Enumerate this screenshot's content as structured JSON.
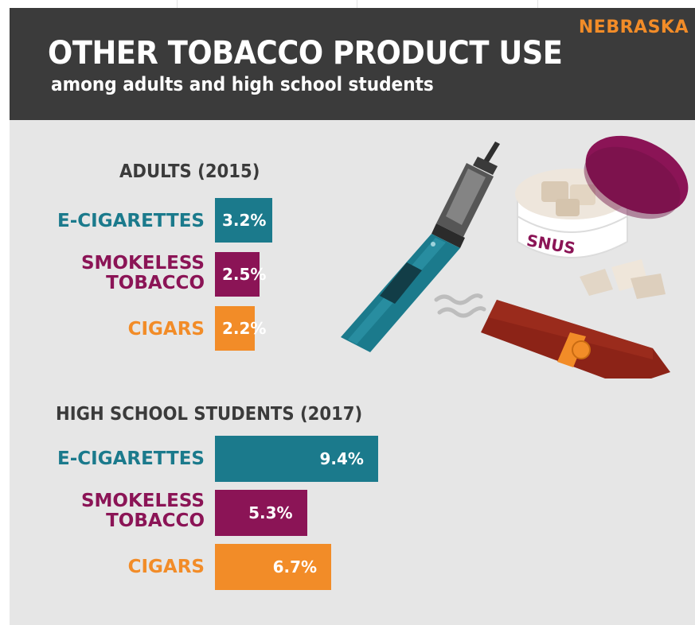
{
  "brand": "NEBRASKA",
  "title": "OTHER TOBACCO PRODUCT USE",
  "subtitle": "among adults and high school students",
  "illustration": {
    "snus_label": "SNUS"
  },
  "colors": {
    "e_cigarettes": "#1b7a8c",
    "smokeless": "#8b1456",
    "cigars": "#f28c28",
    "header_bg": "#3b3b3b",
    "panel_bg": "#e6e6e6"
  },
  "chart_data": [
    {
      "type": "bar",
      "orientation": "horizontal",
      "title": "ADULTS (2015)",
      "categories": [
        "E-CIGARETTES",
        "SMOKELESS\nTOBACCO",
        "CIGARS"
      ],
      "values": [
        3.2,
        2.5,
        2.2
      ],
      "value_labels": [
        "3.2%",
        "2.5%",
        "2.2%"
      ],
      "colors": [
        "#1b7a8c",
        "#8b1456",
        "#f28c28"
      ],
      "xlim": [
        0,
        10
      ]
    },
    {
      "type": "bar",
      "orientation": "horizontal",
      "title": "HIGH SCHOOL STUDENTS (2017)",
      "categories": [
        "E-CIGARETTES",
        "SMOKELESS\nTOBACCO",
        "CIGARS"
      ],
      "values": [
        9.4,
        5.3,
        6.7
      ],
      "value_labels": [
        "9.4%",
        "5.3%",
        "6.7%"
      ],
      "colors": [
        "#1b7a8c",
        "#8b1456",
        "#f28c28"
      ],
      "xlim": [
        0,
        10
      ]
    }
  ]
}
